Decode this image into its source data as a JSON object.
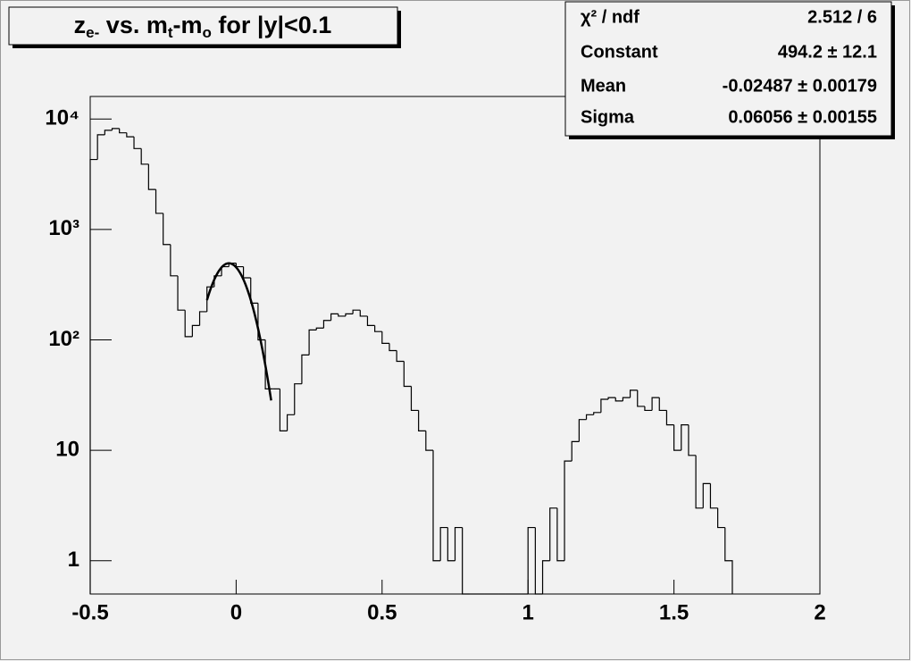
{
  "chart_data": {
    "type": "histogram",
    "title": [
      {
        "text": "z"
      },
      {
        "text": "e-",
        "sub": true
      },
      {
        "text": " vs. m"
      },
      {
        "text": "t",
        "sub": true
      },
      {
        "text": "-m"
      },
      {
        "text": "o",
        "sub": true
      },
      {
        "text": " for |y|<0.1"
      }
    ],
    "bins": [
      -0.5,
      -0.475,
      -0.45,
      -0.425,
      -0.4,
      -0.375,
      -0.35,
      -0.325,
      -0.3,
      -0.275,
      -0.25,
      -0.225,
      -0.2,
      -0.175,
      -0.15,
      -0.125,
      -0.1,
      -0.075,
      -0.05,
      -0.025,
      0,
      0.025,
      0.05,
      0.075,
      0.1,
      0.125,
      0.15,
      0.175,
      0.2,
      0.225,
      0.25,
      0.275,
      0.3,
      0.325,
      0.35,
      0.375,
      0.4,
      0.425,
      0.45,
      0.475,
      0.5,
      0.525,
      0.55,
      0.575,
      0.6,
      0.625,
      0.65,
      0.675,
      0.7,
      0.725,
      0.75,
      0.775,
      0.8,
      0.825,
      0.85,
      0.875,
      0.9,
      0.925,
      0.95,
      0.975,
      1,
      1.025,
      1.05,
      1.075,
      1.1,
      1.125,
      1.15,
      1.175,
      1.2,
      1.225,
      1.25,
      1.275,
      1.3,
      1.325,
      1.35,
      1.375,
      1.4,
      1.425,
      1.45,
      1.475,
      1.5,
      1.525,
      1.55,
      1.575,
      1.6,
      1.625,
      1.65,
      1.675,
      1.7
    ],
    "values": [
      4300,
      7200,
      7900,
      8200,
      7500,
      6900,
      5400,
      3900,
      2300,
      1400,
      730,
      380,
      186,
      107,
      135,
      180,
      302,
      380,
      460,
      495,
      460,
      365,
      215,
      100,
      36,
      36,
      15,
      21,
      40,
      73,
      123,
      128,
      150,
      172,
      164,
      172,
      186,
      164,
      135,
      119,
      93,
      80,
      64,
      38,
      23,
      15,
      10,
      1,
      2,
      1,
      2,
      0,
      0,
      0,
      0,
      0,
      0,
      0,
      0,
      0,
      2,
      0,
      1,
      3,
      1,
      8,
      12,
      19,
      21,
      22,
      29,
      30,
      28,
      30,
      35,
      25,
      23,
      30,
      23,
      17,
      10,
      17,
      9,
      3,
      5,
      3,
      2,
      1
    ],
    "color": "#000000",
    "fit_range": [
      -0.1,
      0.12
    ],
    "fit_color": "#000000",
    "xlim": [
      -0.5,
      2
    ],
    "xticks": [
      -0.5,
      0,
      0.5,
      1,
      1.5,
      2
    ],
    "ylim": [
      0.5,
      16000
    ],
    "yticks": [
      1,
      10,
      {
        "value": 100,
        "label": "10²"
      },
      {
        "value": 1000,
        "label": "10³"
      },
      {
        "value": 10000,
        "label": "10⁴"
      }
    ],
    "log_y": true,
    "stats": [
      {
        "name": "χ² / ndf",
        "value_label": "2.512 / 6"
      },
      {
        "name": "Constant",
        "value": 494.2,
        "error": 12.1,
        "value_label": "494.2 ± 12.1"
      },
      {
        "name": "Mean",
        "value": -0.02487,
        "error": 0.00179,
        "value_label": "-0.02487 ± 0.00179"
      },
      {
        "name": "Sigma",
        "value": 0.06056,
        "error": 0.00155,
        "value_label": "0.06056 ± 0.00155"
      }
    ]
  }
}
